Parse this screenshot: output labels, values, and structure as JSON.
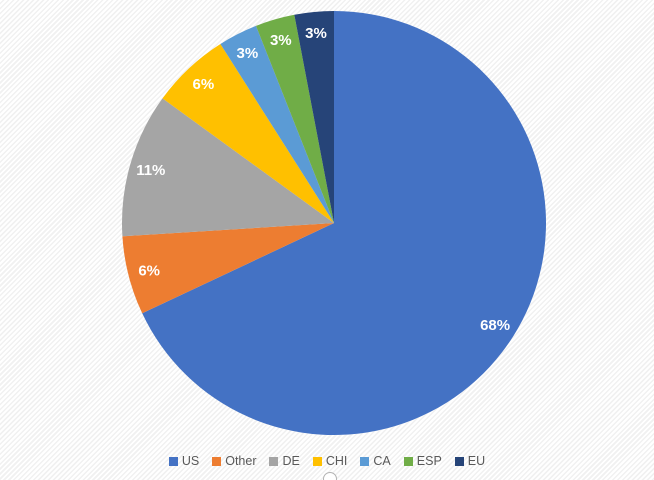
{
  "chart_data": {
    "type": "pie",
    "categories": [
      "US",
      "Other",
      "DE",
      "CHI",
      "CA",
      "ESP",
      "EU"
    ],
    "values": [
      68,
      6,
      11,
      6,
      3,
      3,
      3
    ],
    "data_labels": [
      "68%",
      "6%",
      "11%",
      "6%",
      "3%",
      "3%",
      "3%"
    ],
    "colors": [
      "#4472C4",
      "#ED7D31",
      "#A5A5A5",
      "#FFC000",
      "#5B9BD5",
      "#70AD47",
      "#264478"
    ],
    "title": "",
    "start_angle_deg": 0,
    "direction": "clockwise",
    "legend_position": "bottom",
    "data_label_color": "#FFFFFF",
    "legend_text_color": "#595959"
  }
}
